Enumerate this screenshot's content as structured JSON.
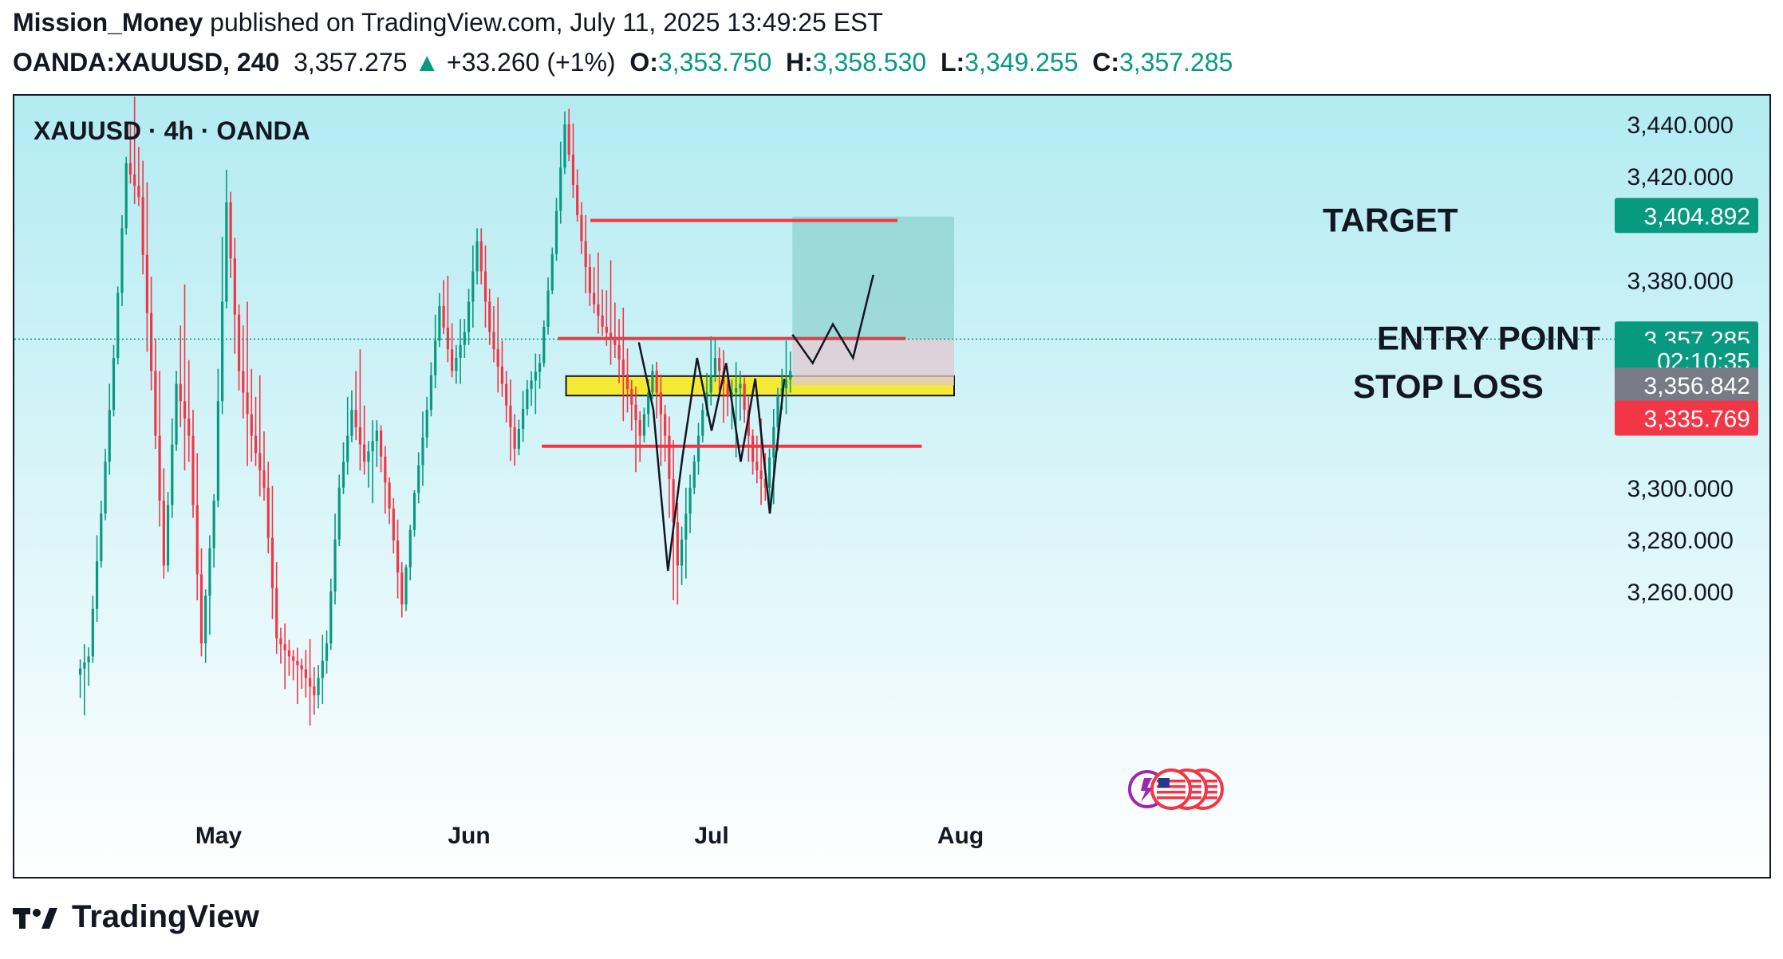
{
  "header": {
    "author": "Mission_Money",
    "published_text": "published on TradingView.com, July 11, 2025 13:49:25 EST",
    "symbol": "OANDA:XAUUSD, 240",
    "last": "3,357.275",
    "change": "+33.260 (+1%)",
    "o_label": "O:",
    "o_value": "3,353.750",
    "h_label": "H:",
    "h_value": "3,358.530",
    "l_label": "L:",
    "l_value": "3,349.255",
    "c_label": "C:",
    "c_value": "3,357.285"
  },
  "chart_label": "XAUUSD · 4h · OANDA",
  "footer": {
    "brand": "TradingView"
  },
  "colors": {
    "up": "#089981",
    "down": "#f23645",
    "bg_top": "#b2ebf2",
    "bg_bottom": "#ffffff",
    "zone": "#f5ea33",
    "target_zone": "#80cbc4",
    "stop_zone": "#f8bbd0"
  },
  "chart_data": {
    "type": "candlestick",
    "x_ticks": [
      "May",
      "Jun",
      "Jul",
      "Aug"
    ],
    "y_ticks": [
      "3,440.000",
      "3,420.000",
      "3,380.000",
      "3,300.000",
      "3,280.000",
      "3,260.000"
    ],
    "y_tick_values": [
      3440,
      3420,
      3380,
      3300,
      3280,
      3260
    ],
    "ylim": [
      3233,
      3452
    ],
    "last_price": 3357.275,
    "price_tags": [
      {
        "value": "3,404.892",
        "price": 3404.892,
        "color": "#089981"
      },
      {
        "value": "3,357.285",
        "price": 3357.285,
        "color": "#089981"
      },
      {
        "value": "02:10:35",
        "price": 3348.9,
        "color": "#089981"
      },
      {
        "value": "3,356.842",
        "price": 3339.5,
        "color": "#787b86"
      },
      {
        "value": "3,335.769",
        "price": 3326.8,
        "color": "#f23645"
      }
    ],
    "levels": [
      {
        "name": "target-line",
        "price": 3403,
        "x_from": "Jun 16",
        "x_to": "Jul 24"
      },
      {
        "name": "entry-line",
        "price": 3357.5,
        "x_from": "Jun 12",
        "x_to": "Jul 25"
      },
      {
        "name": "support-line",
        "price": 3316,
        "x_from": "Jun 10",
        "x_to": "Jul 27"
      }
    ],
    "zones": [
      {
        "name": "stop-loss-zone",
        "from": 3335.5,
        "to": 3343,
        "color": "#f5ea33"
      },
      {
        "name": "target-zone",
        "from": 3357.3,
        "to": 3404.5,
        "color": "#80cbc4"
      },
      {
        "name": "risk-zone",
        "from": 3339.5,
        "to": 3357.3,
        "color": "#e1c8d0"
      }
    ],
    "annotations": [
      "TARGET",
      "ENTRY POINT",
      "STOP LOSS"
    ],
    "path_projection": [
      3359,
      3348,
      3363,
      3350,
      3382
    ],
    "swing_path": [
      3356,
      3330,
      3268,
      3312,
      3350,
      3322,
      3348,
      3310,
      3342,
      3290,
      3342
    ],
    "ohlc_daily": [
      [
        3228,
        3242,
        3210,
        3235
      ],
      [
        3235,
        3300,
        3230,
        3290
      ],
      [
        3290,
        3360,
        3285,
        3350
      ],
      [
        3350,
        3430,
        3345,
        3425
      ],
      [
        3425,
        3455,
        3405,
        3412
      ],
      [
        3412,
        3440,
        3330,
        3345
      ],
      [
        3345,
        3370,
        3260,
        3270
      ],
      [
        3270,
        3350,
        3265,
        3340
      ],
      [
        3340,
        3385,
        3300,
        3320
      ],
      [
        3320,
        3340,
        3230,
        3240
      ],
      [
        3240,
        3300,
        3225,
        3295
      ],
      [
        3295,
        3435,
        3290,
        3410
      ],
      [
        3410,
        3418,
        3330,
        3345
      ],
      [
        3345,
        3380,
        3300,
        3320
      ],
      [
        3320,
        3350,
        3290,
        3300
      ],
      [
        3300,
        3320,
        3230,
        3242
      ],
      [
        3242,
        3250,
        3220,
        3235
      ],
      [
        3235,
        3240,
        3215,
        3230
      ],
      [
        3230,
        3245,
        3205,
        3220
      ],
      [
        3220,
        3250,
        3210,
        3240
      ],
      [
        3240,
        3310,
        3235,
        3300
      ],
      [
        3300,
        3345,
        3295,
        3330
      ],
      [
        3330,
        3360,
        3300,
        3310
      ],
      [
        3310,
        3330,
        3290,
        3322
      ],
      [
        3322,
        3326,
        3280,
        3292
      ],
      [
        3292,
        3300,
        3245,
        3255
      ],
      [
        3255,
        3300,
        3250,
        3298
      ],
      [
        3298,
        3340,
        3290,
        3330
      ],
      [
        3330,
        3380,
        3325,
        3370
      ],
      [
        3370,
        3390,
        3340,
        3345
      ],
      [
        3345,
        3370,
        3335,
        3360
      ],
      [
        3360,
        3405,
        3350,
        3395
      ],
      [
        3395,
        3405,
        3350,
        3360
      ],
      [
        3360,
        3380,
        3330,
        3340
      ],
      [
        3340,
        3350,
        3302,
        3315
      ],
      [
        3315,
        3345,
        3310,
        3338
      ],
      [
        3338,
        3355,
        3325,
        3348
      ],
      [
        3348,
        3395,
        3345,
        3390
      ],
      [
        3390,
        3450,
        3385,
        3440
      ],
      [
        3440,
        3452,
        3400,
        3405
      ],
      [
        3405,
        3415,
        3365,
        3375
      ],
      [
        3375,
        3395,
        3355,
        3362
      ],
      [
        3362,
        3390,
        3345,
        3355
      ],
      [
        3355,
        3375,
        3320,
        3338
      ],
      [
        3338,
        3345,
        3300,
        3320
      ],
      [
        3320,
        3350,
        3315,
        3345
      ],
      [
        3345,
        3352,
        3300,
        3320
      ],
      [
        3320,
        3335,
        3240,
        3270
      ],
      [
        3270,
        3310,
        3255,
        3300
      ],
      [
        3300,
        3335,
        3295,
        3330
      ],
      [
        3330,
        3365,
        3325,
        3350
      ],
      [
        3350,
        3358,
        3320,
        3335
      ],
      [
        3335,
        3350,
        3310,
        3340
      ],
      [
        3340,
        3345,
        3300,
        3310
      ],
      [
        3310,
        3330,
        3290,
        3300
      ],
      [
        3300,
        3342,
        3282,
        3335
      ],
      [
        3335,
        3360,
        3325,
        3345
      ]
    ]
  }
}
